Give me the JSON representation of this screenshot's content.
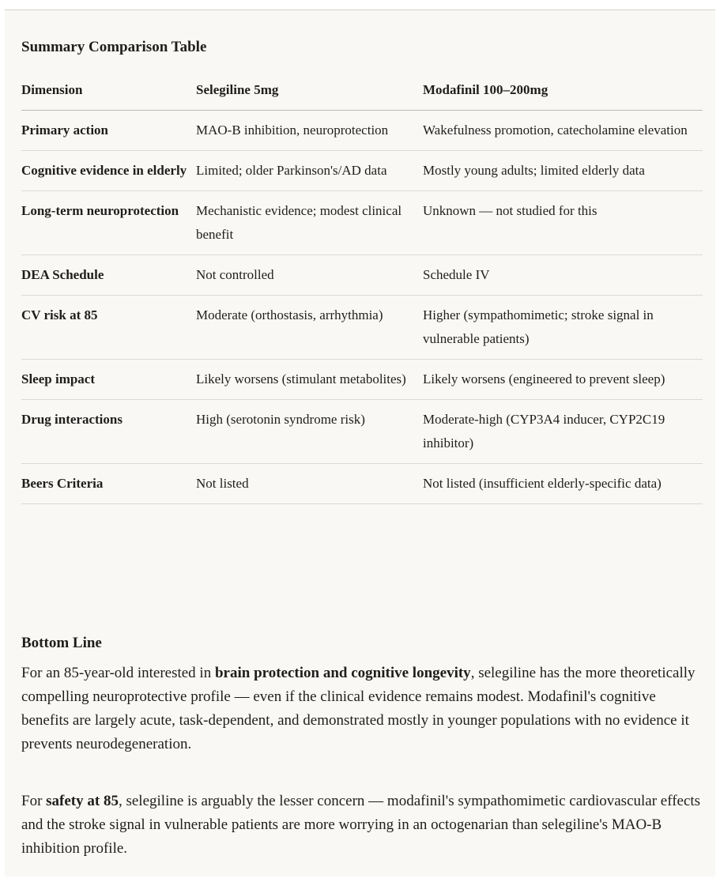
{
  "table_title": "Summary Comparison Table",
  "columns": [
    "Dimension",
    "Selegiline 5mg",
    "Modafinil 100–200mg"
  ],
  "rows": [
    [
      "Primary action",
      "MAO-B inhibition, neuroprotection",
      "Wakefulness promotion, catecholamine elevation"
    ],
    [
      "Cognitive evidence in elderly",
      "Limited; older Parkinson's/AD data",
      "Mostly young adults; limited elderly data"
    ],
    [
      "Long-term neuroprotection",
      "Mechanistic evidence; modest clinical benefit",
      "Unknown — not studied for this"
    ],
    [
      "DEA Schedule",
      "Not controlled",
      "Schedule IV"
    ],
    [
      "CV risk at 85",
      "Moderate (orthostasis, arrhythmia)",
      "Higher (sympathomimetic; stroke signal in vulnerable patients)"
    ],
    [
      "Sleep impact",
      "Likely worsens (stimulant metabolites)",
      "Likely worsens (engineered to prevent sleep)"
    ],
    [
      "Drug interactions",
      "High (serotonin syndrome risk)",
      "Moderate-high (CYP3A4 inducer, CYP2C19 inhibitor)"
    ],
    [
      "Beers Criteria",
      "Not listed",
      "Not listed (insufficient elderly-specific data)"
    ]
  ],
  "bottom_line": {
    "title": "Bottom Line",
    "p1": {
      "pre": "For an 85-year-old interested in ",
      "bold": "brain protection and cognitive longevity",
      "post": ", selegiline has the more theoretically compelling neuroprotective profile — even if the clinical evidence remains modest. Modafinil's cognitive benefits are largely acute, task-dependent, and demonstrated mostly in younger populations with no evidence it prevents neurodegeneration."
    },
    "p2": {
      "pre": "For ",
      "bold": "safety at 85",
      "post": ", selegiline is arguably the lesser concern — modafinil's sympathomimetic cardiovascular effects and the stroke signal in vulnerable patients are more worrying in an octogenarian than selegiline's MAO-B inhibition profile."
    }
  }
}
